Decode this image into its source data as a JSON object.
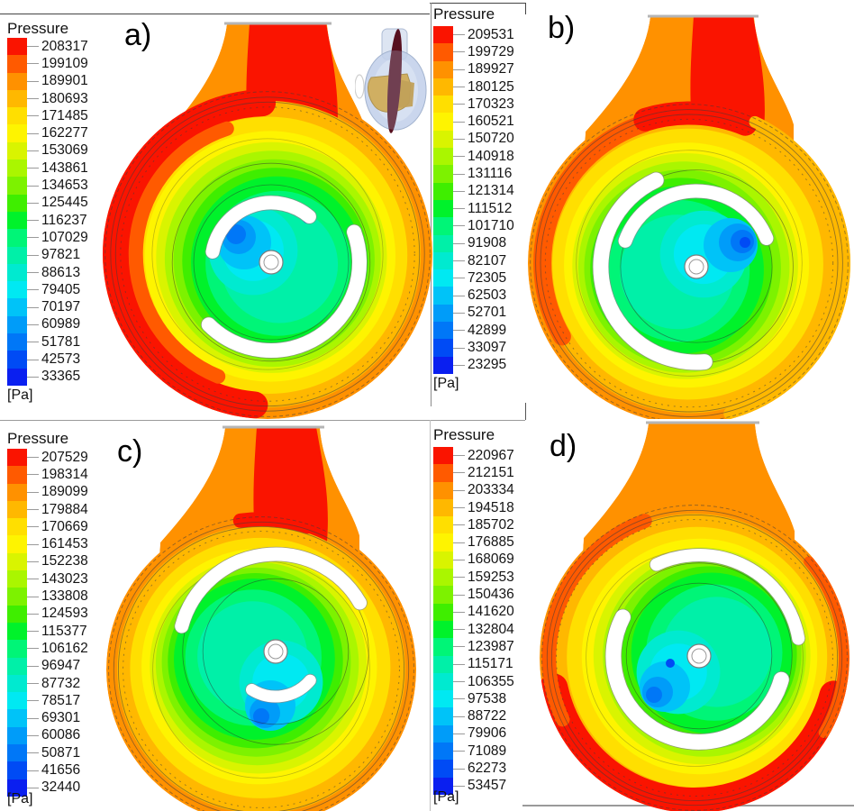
{
  "chart_data": {
    "type": "heatmap",
    "subtype": "cfd-pressure-contour",
    "title": "Pressure",
    "legend_title": "Pressure",
    "unit": "Pa",
    "unit_label": "[Pa]",
    "layout_hint": "2x2 panels, each with vertical rainbow colorbar (max at top) left of a pump volute cross-section contour plot",
    "palette_top_to_bottom": [
      "#fa1400",
      "#ff5a00",
      "#ff9100",
      "#ffb800",
      "#ffdf00",
      "#fef400",
      "#d9f400",
      "#aaf600",
      "#7df200",
      "#3fee00",
      "#00f22b",
      "#00f577",
      "#00f0a8",
      "#00ead0",
      "#00e9f2",
      "#00c3f8",
      "#009cf9",
      "#0077f7",
      "#004bf5",
      "#0a1ff0"
    ],
    "panels": [
      {
        "id": "a",
        "label": "a)",
        "legend_levels_pa": [
          208317,
          199109,
          189901,
          180693,
          171485,
          162277,
          153069,
          143861,
          134653,
          125445,
          116237,
          107029,
          97821,
          88613,
          79405,
          70197,
          60989,
          51781,
          42573,
          33365
        ]
      },
      {
        "id": "b",
        "label": "b)",
        "legend_levels_pa": [
          209531,
          199729,
          189927,
          180125,
          170323,
          160521,
          150720,
          140918,
          131116,
          121314,
          111512,
          101710,
          91908,
          82107,
          72305,
          62503,
          52701,
          42899,
          33097,
          23295
        ]
      },
      {
        "id": "c",
        "label": "c)",
        "legend_levels_pa": [
          207529,
          198314,
          189099,
          179884,
          170669,
          161453,
          152238,
          143023,
          133808,
          124593,
          115377,
          106162,
          96947,
          87732,
          78517,
          69301,
          60086,
          50871,
          41656,
          32440
        ]
      },
      {
        "id": "d",
        "label": "d)",
        "legend_levels_pa": [
          220967,
          212151,
          203334,
          194518,
          185702,
          176885,
          168069,
          159253,
          150436,
          141620,
          132804,
          123987,
          115171,
          106355,
          97538,
          88722,
          79906,
          71089,
          62273,
          53457
        ]
      }
    ],
    "inset": {
      "panel": "a",
      "description": "3D translucent pump model with gold impeller and dark red cut plane"
    }
  }
}
